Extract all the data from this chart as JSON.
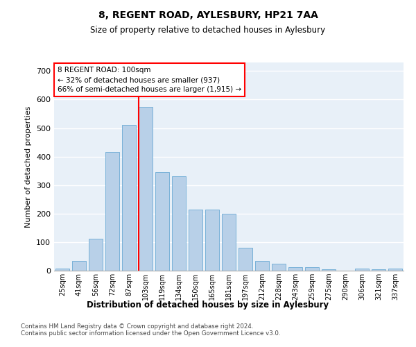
{
  "title1": "8, REGENT ROAD, AYLESBURY, HP21 7AA",
  "title2": "Size of property relative to detached houses in Aylesbury",
  "xlabel": "Distribution of detached houses by size in Aylesbury",
  "ylabel": "Number of detached properties",
  "categories": [
    "25sqm",
    "41sqm",
    "56sqm",
    "72sqm",
    "87sqm",
    "103sqm",
    "119sqm",
    "134sqm",
    "150sqm",
    "165sqm",
    "181sqm",
    "197sqm",
    "212sqm",
    "228sqm",
    "243sqm",
    "259sqm",
    "275sqm",
    "290sqm",
    "306sqm",
    "321sqm",
    "337sqm"
  ],
  "values": [
    8,
    35,
    113,
    415,
    510,
    575,
    345,
    330,
    213,
    213,
    200,
    80,
    35,
    25,
    13,
    12,
    5,
    0,
    8,
    5,
    8
  ],
  "bar_color": "#b8d0e8",
  "bar_edge_color": "#6aaad4",
  "vline_color": "red",
  "vline_x_idx": 5,
  "annotation_title": "8 REGENT ROAD: 100sqm",
  "annotation_line1": "← 32% of detached houses are smaller (937)",
  "annotation_line2": "66% of semi-detached houses are larger (1,915) →",
  "annotation_box_color": "white",
  "annotation_box_edge_color": "red",
  "ylim": [
    0,
    730
  ],
  "yticks": [
    0,
    100,
    200,
    300,
    400,
    500,
    600,
    700
  ],
  "footnote1": "Contains HM Land Registry data © Crown copyright and database right 2024.",
  "footnote2": "Contains public sector information licensed under the Open Government Licence v3.0.",
  "plot_bg_color": "#e8f0f8",
  "grid_color": "#ffffff"
}
